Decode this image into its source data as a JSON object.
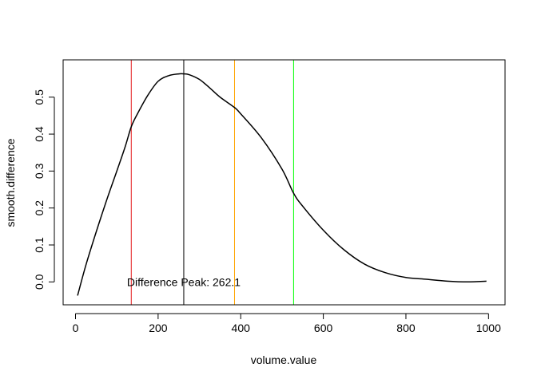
{
  "chart_data": {
    "type": "line",
    "title": "",
    "xlabel": "volume.value",
    "ylabel": "smooth.difference",
    "xlim": [
      -30,
      1040
    ],
    "ylim": [
      -0.062,
      0.601
    ],
    "x_ticks": [
      0,
      200,
      400,
      600,
      800,
      1000
    ],
    "y_ticks": [
      0.0,
      0.1,
      0.2,
      0.3,
      0.4,
      0.5
    ],
    "x_tick_labels": [
      "0",
      "200",
      "400",
      "600",
      "800",
      "1000"
    ],
    "y_tick_labels": [
      "0.0",
      "0.1",
      "0.2",
      "0.3",
      "0.4",
      "0.5"
    ],
    "series": [
      {
        "name": "smooth.difference",
        "color": "#000000",
        "x": [
          5,
          25,
          50,
          75,
          100,
          120,
          135,
          150,
          175,
          200,
          225,
          250,
          262,
          275,
          300,
          325,
          350,
          385,
          400,
          450,
          500,
          528,
          550,
          600,
          650,
          700,
          750,
          800,
          850,
          900,
          950,
          995
        ],
        "y": [
          -0.037,
          0.045,
          0.135,
          0.22,
          0.3,
          0.365,
          0.42,
          0.455,
          0.505,
          0.543,
          0.558,
          0.563,
          0.563,
          0.561,
          0.548,
          0.525,
          0.5,
          0.472,
          0.455,
          0.39,
          0.305,
          0.24,
          0.205,
          0.14,
          0.087,
          0.048,
          0.025,
          0.012,
          0.007,
          0.002,
          0.0,
          0.002
        ]
      }
    ],
    "vertical_lines": [
      {
        "name": "red-line",
        "x": 135,
        "color": "#e41a1c"
      },
      {
        "name": "peak-line",
        "x": 262.1,
        "color": "#000000"
      },
      {
        "name": "orange-line",
        "x": 385,
        "color": "#ffa500"
      },
      {
        "name": "green-line",
        "x": 528,
        "color": "#00ff00"
      }
    ],
    "annotations": [
      {
        "text": "Difference Peak: 262.1",
        "x": 262.1,
        "y": 0.0
      }
    ]
  }
}
